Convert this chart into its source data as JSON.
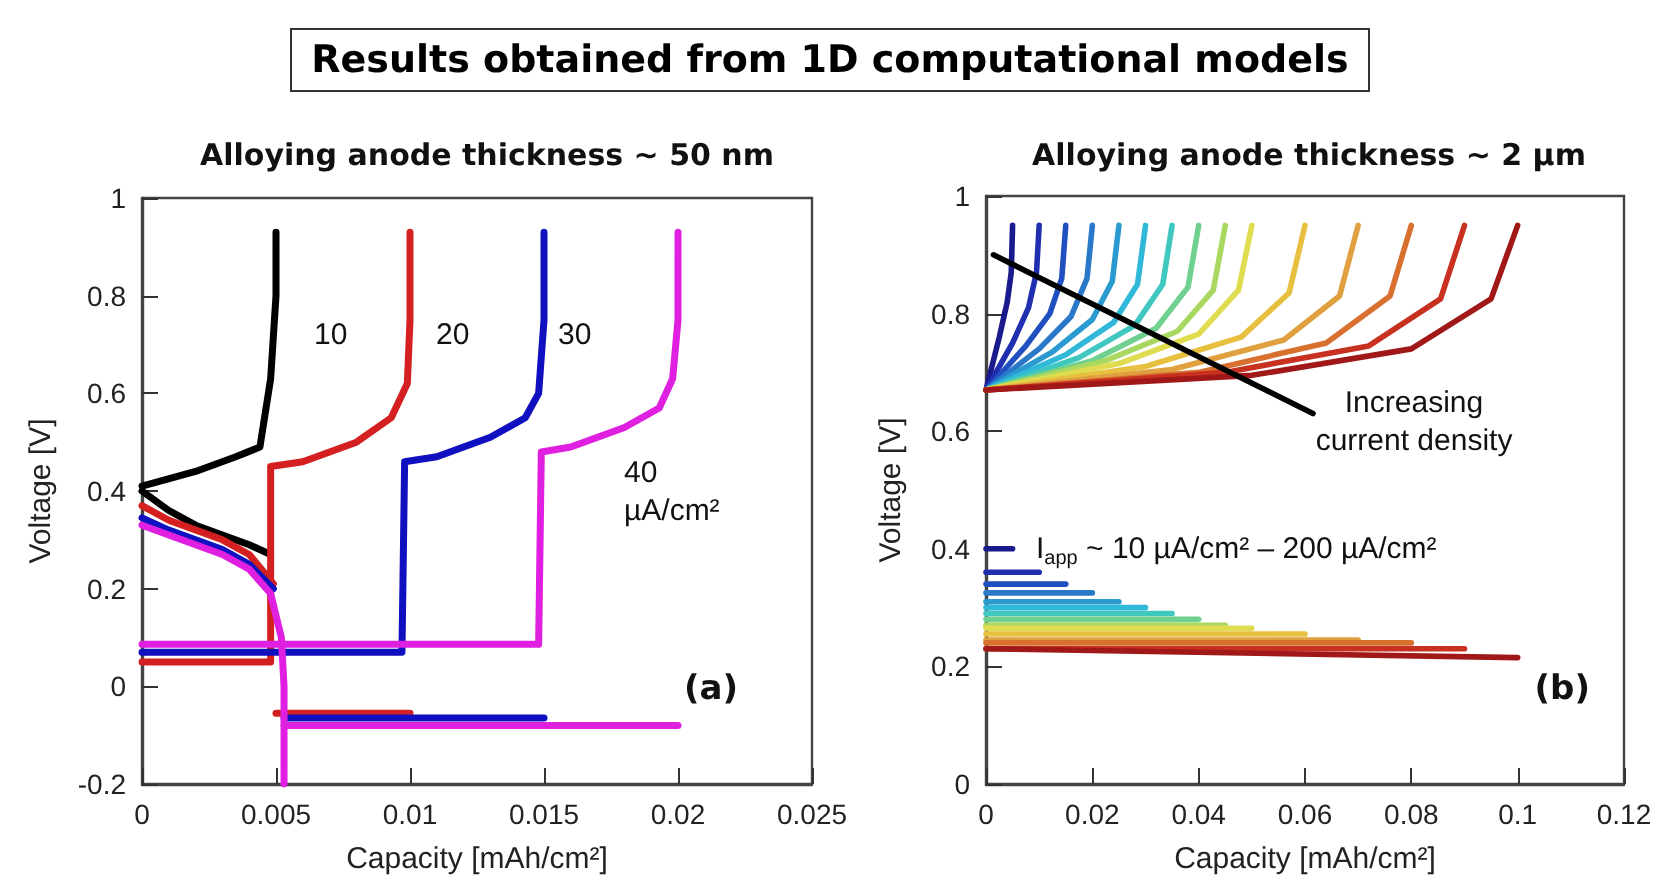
{
  "chart_data": [
    {
      "type": "other",
      "title": "Results obtained from 1D computational models"
    },
    {
      "type": "line",
      "title": "Alloying anode thickness ~ 50 nm",
      "xlabel": "Capacity [mAh/cm²]",
      "ylabel": "Voltage [V]",
      "xlim": [
        0,
        0.025
      ],
      "ylim": [
        -0.2,
        1
      ],
      "xticks": [
        0,
        0.005,
        0.01,
        0.015,
        0.02,
        0.025
      ],
      "yticks": [
        -0.2,
        0,
        0.2,
        0.4,
        0.6,
        0.8,
        1
      ],
      "marker": "none",
      "line_style": "solid",
      "annotations": [
        "10",
        "20",
        "30",
        "40\nµA/cm²",
        "(a)"
      ],
      "series": [
        {
          "color": "#000000",
          "x": [
            0,
            0.001,
            0.002,
            0.003,
            0.004,
            0.0048
          ],
          "values": [
            0.4,
            0.36,
            0.33,
            0.31,
            0.29,
            0.27
          ]
        },
        {
          "color": "#000000",
          "x": [
            0,
            0.002,
            0.0035,
            0.0044,
            0.0048,
            0.005,
            0.005
          ],
          "values": [
            0.41,
            0.44,
            0.47,
            0.49,
            0.63,
            0.8,
            0.93
          ]
        },
        {
          "color": "#d42020",
          "x": [
            0,
            0.001,
            0.002,
            0.003,
            0.004,
            0.0049
          ],
          "values": [
            0.37,
            0.34,
            0.32,
            0.3,
            0.27,
            0.21
          ]
        },
        {
          "color": "#d42020",
          "x": [
            0,
            0.0048,
            0.0048,
            0.006,
            0.008,
            0.0093,
            0.0099,
            0.01,
            0.01
          ],
          "values": [
            0.05,
            0.05,
            0.45,
            0.46,
            0.5,
            0.55,
            0.62,
            0.75,
            0.93
          ]
        },
        {
          "color": "#d42020",
          "x": [
            0.005,
            0.01
          ],
          "values": [
            -0.055,
            -0.055
          ]
        },
        {
          "color": "#1010c0",
          "x": [
            0,
            0.001,
            0.002,
            0.003,
            0.004,
            0.0049
          ],
          "values": [
            0.345,
            0.32,
            0.3,
            0.28,
            0.25,
            0.2
          ]
        },
        {
          "color": "#1010c0",
          "x": [
            0,
            0.0097,
            0.0098,
            0.011,
            0.013,
            0.0143,
            0.0148,
            0.015,
            0.015
          ],
          "values": [
            0.07,
            0.07,
            0.46,
            0.47,
            0.51,
            0.55,
            0.6,
            0.75,
            0.93
          ]
        },
        {
          "color": "#1010c0",
          "x": [
            0.0053,
            0.015
          ],
          "values": [
            -0.065,
            -0.065
          ]
        },
        {
          "color": "#e020e0",
          "x": [
            0,
            0.001,
            0.002,
            0.003,
            0.004,
            0.0048,
            0.0052,
            0.0053,
            0.0053
          ],
          "values": [
            0.33,
            0.31,
            0.29,
            0.27,
            0.24,
            0.19,
            0.1,
            0,
            -0.2
          ]
        },
        {
          "color": "#e020e0",
          "x": [
            0,
            0.0148,
            0.0149,
            0.016,
            0.018,
            0.0193,
            0.0198,
            0.02,
            0.02
          ],
          "values": [
            0.086,
            0.086,
            0.48,
            0.49,
            0.53,
            0.57,
            0.63,
            0.75,
            0.93
          ]
        },
        {
          "color": "#e020e0",
          "x": [
            0.0053,
            0.02
          ],
          "values": [
            -0.08,
            -0.08
          ]
        }
      ]
    },
    {
      "type": "line",
      "title": "Alloying anode thickness ~ 2 µm",
      "xlabel": "Capacity [mAh/cm²]",
      "ylabel": "Voltage [V]",
      "xlim": [
        0,
        0.12
      ],
      "ylim": [
        0,
        1
      ],
      "xticks": [
        0,
        0.02,
        0.04,
        0.06,
        0.08,
        0.1,
        0.12
      ],
      "yticks": [
        0,
        0.2,
        0.4,
        0.6,
        0.8,
        1
      ],
      "marker": "none",
      "line_style": "solid",
      "annotations": [
        "Increasing\ncurrent density",
        "I$_{app}$ ~ 10 µA/cm² – 200 µA/cm²",
        "(b)"
      ],
      "series": [
        {
          "color": "#1a1a8c",
          "x": [
            0,
            0.0025,
            0.004,
            0.00475,
            0.005
          ],
          "values": [
            0.67,
            0.76,
            0.82,
            0.87,
            0.95
          ]
        },
        {
          "color": "#1f2fb0",
          "x": [
            0,
            0.005,
            0.008,
            0.0095,
            0.01
          ],
          "values": [
            0.67,
            0.75,
            0.81,
            0.87,
            0.95
          ]
        },
        {
          "color": "#2050c0",
          "x": [
            0,
            0.0075,
            0.012,
            0.01425,
            0.015
          ],
          "values": [
            0.67,
            0.745,
            0.8,
            0.86,
            0.95
          ]
        },
        {
          "color": "#2a78c8",
          "x": [
            0,
            0.01,
            0.016,
            0.019,
            0.02
          ],
          "values": [
            0.67,
            0.74,
            0.795,
            0.86,
            0.95
          ]
        },
        {
          "color": "#2a9ad0",
          "x": [
            0,
            0.0125,
            0.02,
            0.02375,
            0.025
          ],
          "values": [
            0.67,
            0.735,
            0.79,
            0.855,
            0.95
          ]
        },
        {
          "color": "#30b8d8",
          "x": [
            0,
            0.015,
            0.024,
            0.0285,
            0.03
          ],
          "values": [
            0.67,
            0.73,
            0.785,
            0.85,
            0.95
          ]
        },
        {
          "color": "#40c8c0",
          "x": [
            0,
            0.0175,
            0.028,
            0.03325,
            0.035
          ],
          "values": [
            0.67,
            0.725,
            0.78,
            0.85,
            0.95
          ]
        },
        {
          "color": "#70d090",
          "x": [
            0,
            0.02,
            0.032,
            0.038,
            0.04
          ],
          "values": [
            0.67,
            0.72,
            0.775,
            0.845,
            0.95
          ]
        },
        {
          "color": "#a8d860",
          "x": [
            0,
            0.0225,
            0.036,
            0.04275,
            0.045
          ],
          "values": [
            0.67,
            0.72,
            0.77,
            0.84,
            0.95
          ]
        },
        {
          "color": "#e0dc50",
          "x": [
            0,
            0.025,
            0.04,
            0.0475,
            0.05
          ],
          "values": [
            0.67,
            0.715,
            0.765,
            0.84,
            0.95
          ]
        },
        {
          "color": "#e8c040",
          "x": [
            0,
            0.03,
            0.048,
            0.057,
            0.06
          ],
          "values": [
            0.67,
            0.71,
            0.76,
            0.835,
            0.95
          ]
        },
        {
          "color": "#e0a040",
          "x": [
            0,
            0.035,
            0.056,
            0.0665,
            0.07
          ],
          "values": [
            0.67,
            0.705,
            0.755,
            0.83,
            0.95
          ]
        },
        {
          "color": "#d87030",
          "x": [
            0,
            0.04,
            0.064,
            0.076,
            0.08
          ],
          "values": [
            0.67,
            0.7,
            0.75,
            0.83,
            0.95
          ]
        },
        {
          "color": "#c83020",
          "x": [
            0,
            0.045,
            0.072,
            0.0855,
            0.09
          ],
          "values": [
            0.67,
            0.7,
            0.745,
            0.825,
            0.95
          ]
        },
        {
          "color": "#a01818",
          "x": [
            0,
            0.05,
            0.08,
            0.095,
            0.1
          ],
          "values": [
            0.67,
            0.695,
            0.74,
            0.825,
            0.95
          ]
        },
        {
          "color": "#1a1a8c",
          "x": [
            0,
            0.005
          ],
          "values": [
            0.4,
            0.4
          ]
        },
        {
          "color": "#1f2fb0",
          "x": [
            0,
            0.01
          ],
          "values": [
            0.36,
            0.36
          ]
        },
        {
          "color": "#2050c0",
          "x": [
            0,
            0.015
          ],
          "values": [
            0.34,
            0.34
          ]
        },
        {
          "color": "#2a78c8",
          "x": [
            0,
            0.02
          ],
          "values": [
            0.325,
            0.325
          ]
        },
        {
          "color": "#2a9ad0",
          "x": [
            0,
            0.025
          ],
          "values": [
            0.31,
            0.31
          ]
        },
        {
          "color": "#30b8d8",
          "x": [
            0,
            0.03
          ],
          "values": [
            0.3,
            0.3
          ]
        },
        {
          "color": "#40c8c0",
          "x": [
            0,
            0.035
          ],
          "values": [
            0.29,
            0.29
          ]
        },
        {
          "color": "#70d090",
          "x": [
            0,
            0.04
          ],
          "values": [
            0.28,
            0.28
          ]
        },
        {
          "color": "#a8d860",
          "x": [
            0,
            0.045
          ],
          "values": [
            0.27,
            0.27
          ]
        },
        {
          "color": "#e0dc50",
          "x": [
            0,
            0.05
          ],
          "values": [
            0.265,
            0.265
          ]
        },
        {
          "color": "#e8c040",
          "x": [
            0,
            0.06
          ],
          "values": [
            0.255,
            0.255
          ]
        },
        {
          "color": "#e0a040",
          "x": [
            0,
            0.07
          ],
          "values": [
            0.245,
            0.245
          ]
        },
        {
          "color": "#d87030",
          "x": [
            0,
            0.08
          ],
          "values": [
            0.24,
            0.24
          ]
        },
        {
          "color": "#c83020",
          "x": [
            0,
            0.09
          ],
          "values": [
            0.23,
            0.23
          ]
        },
        {
          "color": "#a01818",
          "x": [
            0,
            0.1
          ],
          "values": [
            0.23,
            0.215
          ]
        },
        {
          "color": "#000000",
          "x": [
            0.0014,
            0.0615
          ],
          "values": [
            0.9,
            0.63
          ]
        }
      ]
    }
  ]
}
